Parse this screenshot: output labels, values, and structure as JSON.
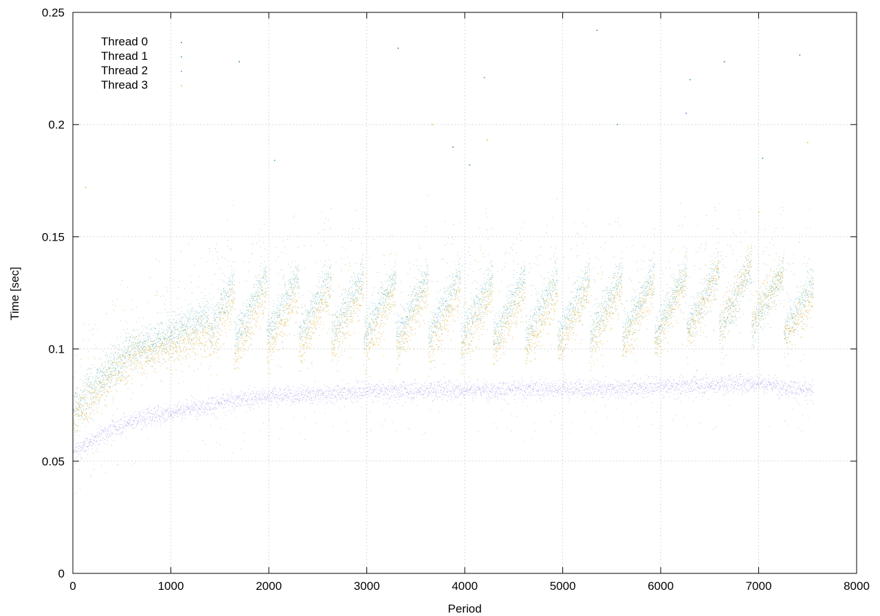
{
  "chart_data": {
    "type": "scatter",
    "title": "",
    "xlabel": "Period",
    "ylabel": "Time [sec]",
    "xlim": [
      0,
      8000
    ],
    "ylim": [
      0,
      0.25
    ],
    "x_ticks": [
      0,
      1000,
      2000,
      3000,
      4000,
      5000,
      6000,
      7000,
      8000
    ],
    "x_tick_labels": [
      "0",
      "1000",
      "2000",
      "3000",
      "4000",
      "5000",
      "6000",
      "7000",
      "8000"
    ],
    "y_ticks": [
      0,
      0.05,
      0.1,
      0.15,
      0.2,
      0.25
    ],
    "y_tick_labels": [
      "0",
      "0.05",
      "0.1",
      "0.15",
      "0.2",
      "0.25"
    ],
    "grid": true,
    "legend_position": "top-left",
    "x_extent": [
      0,
      7560
    ],
    "series": [
      {
        "name": "Thread 0",
        "color": "#2e8b57",
        "band_x": [
          0,
          300,
          600,
          1000,
          1500,
          2000,
          3000,
          4000,
          5000,
          6000,
          7000,
          7560
        ],
        "band_median": [
          0.075,
          0.09,
          0.1,
          0.105,
          0.115,
          0.12,
          0.12,
          0.118,
          0.118,
          0.12,
          0.122,
          0.118
        ],
        "outliers": [
          [
            1700,
            0.228
          ],
          [
            3320,
            0.234
          ],
          [
            3880,
            0.19
          ],
          [
            5350,
            0.242
          ],
          [
            6650,
            0.228
          ],
          [
            7420,
            0.231
          ]
        ]
      },
      {
        "name": "Thread 1",
        "color": "#2c9cc4",
        "band_x": [
          0,
          300,
          600,
          1000,
          1500,
          2000,
          3000,
          4000,
          5000,
          6000,
          7000,
          7560
        ],
        "band_median": [
          0.07,
          0.085,
          0.1,
          0.108,
          0.118,
          0.12,
          0.12,
          0.12,
          0.12,
          0.122,
          0.125,
          0.12
        ],
        "outliers": [
          [
            2060,
            0.184
          ],
          [
            4050,
            0.182
          ],
          [
            5560,
            0.2
          ],
          [
            6300,
            0.22
          ],
          [
            7040,
            0.185
          ]
        ]
      },
      {
        "name": "Thread 2",
        "color": "#7b6fe0",
        "band_x": [
          0,
          300,
          600,
          1000,
          1500,
          2000,
          3000,
          4000,
          5000,
          6000,
          7000,
          7560
        ],
        "band_median": [
          0.053,
          0.062,
          0.068,
          0.072,
          0.076,
          0.079,
          0.081,
          0.082,
          0.082,
          0.083,
          0.085,
          0.081
        ],
        "outliers": [
          [
            4200,
            0.221
          ],
          [
            6260,
            0.205
          ]
        ]
      },
      {
        "name": "Thread 3",
        "color": "#e8b53c",
        "band_x": [
          0,
          300,
          600,
          1000,
          1500,
          2000,
          3000,
          4000,
          5000,
          6000,
          7000,
          7560
        ],
        "band_median": [
          0.068,
          0.082,
          0.096,
          0.1,
          0.108,
          0.112,
          0.112,
          0.112,
          0.112,
          0.115,
          0.128,
          0.112
        ],
        "outliers": [
          [
            130,
            0.172
          ],
          [
            3670,
            0.2
          ],
          [
            4230,
            0.193
          ],
          [
            7000,
            0.161
          ],
          [
            7500,
            0.192
          ]
        ]
      }
    ]
  }
}
